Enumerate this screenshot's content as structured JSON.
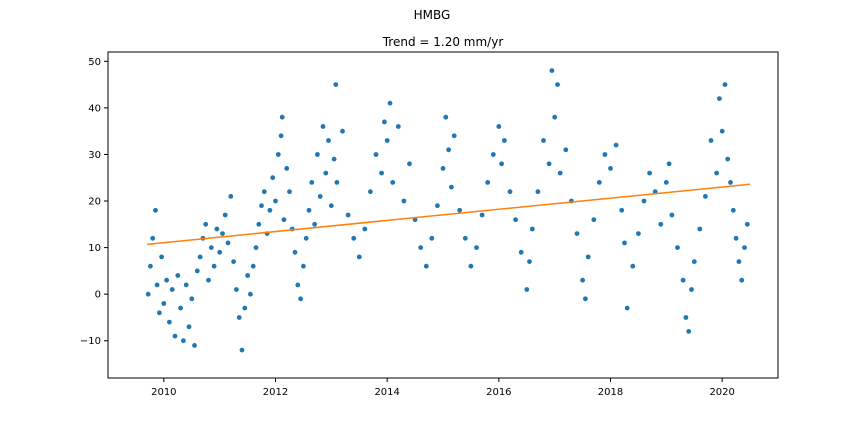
{
  "chart_data": {
    "type": "scatter",
    "suptitle": "HMBG",
    "title": "Trend = 1.20 mm/yr",
    "xlabel": "",
    "ylabel": "",
    "xlim": [
      2009.0,
      2021.0
    ],
    "ylim": [
      -18,
      52
    ],
    "x_ticks": [
      2010,
      2012,
      2014,
      2016,
      2018,
      2020
    ],
    "y_ticks": [
      -10,
      0,
      10,
      20,
      30,
      40,
      50
    ],
    "grid": false,
    "legend": "none",
    "colors": {
      "points": "#1f77b4",
      "trend": "#ff7f0e"
    },
    "trend": {
      "x": [
        2009.7,
        2020.5
      ],
      "y": [
        10.7,
        23.6
      ],
      "slope_mm_per_yr": 1.2
    },
    "series": [
      {
        "values": [
          [
            2009.72,
            0
          ],
          [
            2009.76,
            6
          ],
          [
            2009.8,
            12
          ],
          [
            2009.85,
            18
          ],
          [
            2009.88,
            2
          ],
          [
            2009.92,
            -4
          ],
          [
            2009.96,
            8
          ],
          [
            2010.0,
            -2
          ],
          [
            2010.05,
            3
          ],
          [
            2010.1,
            -6
          ],
          [
            2010.15,
            1
          ],
          [
            2010.2,
            -9
          ],
          [
            2010.25,
            4
          ],
          [
            2010.3,
            -3
          ],
          [
            2010.35,
            -10
          ],
          [
            2010.4,
            2
          ],
          [
            2010.45,
            -7
          ],
          [
            2010.5,
            -1
          ],
          [
            2010.55,
            -11
          ],
          [
            2010.6,
            5
          ],
          [
            2010.65,
            8
          ],
          [
            2010.7,
            12
          ],
          [
            2010.75,
            15
          ],
          [
            2010.8,
            3
          ],
          [
            2010.85,
            10
          ],
          [
            2010.9,
            6
          ],
          [
            2010.95,
            14
          ],
          [
            2011.0,
            9
          ],
          [
            2011.05,
            13
          ],
          [
            2011.1,
            17
          ],
          [
            2011.15,
            11
          ],
          [
            2011.2,
            21
          ],
          [
            2011.25,
            7
          ],
          [
            2011.3,
            1
          ],
          [
            2011.35,
            -5
          ],
          [
            2011.4,
            -12
          ],
          [
            2011.45,
            -3
          ],
          [
            2011.5,
            4
          ],
          [
            2011.55,
            0
          ],
          [
            2011.6,
            6
          ],
          [
            2011.65,
            10
          ],
          [
            2011.7,
            15
          ],
          [
            2011.75,
            19
          ],
          [
            2011.8,
            22
          ],
          [
            2011.85,
            13
          ],
          [
            2011.9,
            18
          ],
          [
            2011.95,
            25
          ],
          [
            2012.0,
            20
          ],
          [
            2012.05,
            30
          ],
          [
            2012.1,
            34
          ],
          [
            2012.12,
            38
          ],
          [
            2012.15,
            16
          ],
          [
            2012.2,
            27
          ],
          [
            2012.25,
            22
          ],
          [
            2012.3,
            14
          ],
          [
            2012.35,
            9
          ],
          [
            2012.4,
            2
          ],
          [
            2012.45,
            -1
          ],
          [
            2012.5,
            6
          ],
          [
            2012.55,
            12
          ],
          [
            2012.6,
            18
          ],
          [
            2012.65,
            24
          ],
          [
            2012.7,
            15
          ],
          [
            2012.75,
            30
          ],
          [
            2012.8,
            21
          ],
          [
            2012.85,
            36
          ],
          [
            2012.9,
            26
          ],
          [
            2012.95,
            33
          ],
          [
            2013.0,
            19
          ],
          [
            2013.05,
            29
          ],
          [
            2013.08,
            45
          ],
          [
            2013.1,
            24
          ],
          [
            2013.2,
            35
          ],
          [
            2013.3,
            17
          ],
          [
            2013.4,
            12
          ],
          [
            2013.5,
            8
          ],
          [
            2013.6,
            14
          ],
          [
            2013.7,
            22
          ],
          [
            2013.8,
            30
          ],
          [
            2013.9,
            26
          ],
          [
            2013.95,
            37
          ],
          [
            2014.0,
            33
          ],
          [
            2014.05,
            41
          ],
          [
            2014.1,
            24
          ],
          [
            2014.2,
            36
          ],
          [
            2014.3,
            20
          ],
          [
            2014.4,
            28
          ],
          [
            2014.5,
            16
          ],
          [
            2014.6,
            10
          ],
          [
            2014.7,
            6
          ],
          [
            2014.8,
            12
          ],
          [
            2014.9,
            19
          ],
          [
            2015.0,
            27
          ],
          [
            2015.05,
            38
          ],
          [
            2015.1,
            31
          ],
          [
            2015.15,
            23
          ],
          [
            2015.2,
            34
          ],
          [
            2015.3,
            18
          ],
          [
            2015.4,
            12
          ],
          [
            2015.5,
            6
          ],
          [
            2015.6,
            10
          ],
          [
            2015.7,
            17
          ],
          [
            2015.8,
            24
          ],
          [
            2015.9,
            30
          ],
          [
            2016.0,
            36
          ],
          [
            2016.05,
            28
          ],
          [
            2016.1,
            33
          ],
          [
            2016.2,
            22
          ],
          [
            2016.3,
            16
          ],
          [
            2016.4,
            9
          ],
          [
            2016.5,
            1
          ],
          [
            2016.55,
            7
          ],
          [
            2016.6,
            14
          ],
          [
            2016.7,
            22
          ],
          [
            2016.8,
            33
          ],
          [
            2016.9,
            28
          ],
          [
            2016.95,
            48
          ],
          [
            2017.0,
            38
          ],
          [
            2017.05,
            45
          ],
          [
            2017.1,
            26
          ],
          [
            2017.2,
            31
          ],
          [
            2017.3,
            20
          ],
          [
            2017.4,
            13
          ],
          [
            2017.5,
            3
          ],
          [
            2017.55,
            -1
          ],
          [
            2017.6,
            8
          ],
          [
            2017.7,
            16
          ],
          [
            2017.8,
            24
          ],
          [
            2017.9,
            30
          ],
          [
            2018.0,
            27
          ],
          [
            2018.1,
            32
          ],
          [
            2018.2,
            18
          ],
          [
            2018.25,
            11
          ],
          [
            2018.3,
            -3
          ],
          [
            2018.4,
            6
          ],
          [
            2018.5,
            13
          ],
          [
            2018.6,
            20
          ],
          [
            2018.7,
            26
          ],
          [
            2018.8,
            22
          ],
          [
            2018.9,
            15
          ],
          [
            2019.0,
            24
          ],
          [
            2019.05,
            28
          ],
          [
            2019.1,
            17
          ],
          [
            2019.2,
            10
          ],
          [
            2019.3,
            3
          ],
          [
            2019.35,
            -5
          ],
          [
            2019.4,
            -8
          ],
          [
            2019.45,
            1
          ],
          [
            2019.5,
            7
          ],
          [
            2019.6,
            14
          ],
          [
            2019.7,
            21
          ],
          [
            2019.8,
            33
          ],
          [
            2019.9,
            26
          ],
          [
            2019.95,
            42
          ],
          [
            2020.0,
            35
          ],
          [
            2020.05,
            45
          ],
          [
            2020.1,
            29
          ],
          [
            2020.15,
            24
          ],
          [
            2020.2,
            18
          ],
          [
            2020.25,
            12
          ],
          [
            2020.3,
            7
          ],
          [
            2020.35,
            3
          ],
          [
            2020.4,
            10
          ],
          [
            2020.45,
            15
          ]
        ]
      }
    ]
  }
}
